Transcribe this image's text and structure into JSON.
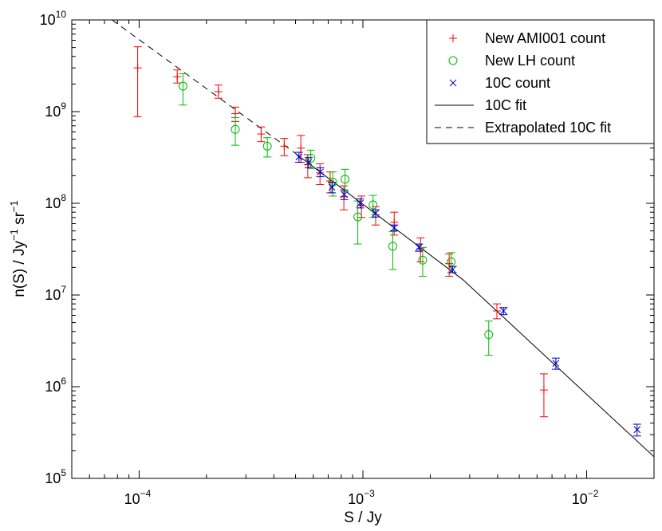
{
  "chart_data": {
    "type": "scatter",
    "title": "",
    "xscale": "log",
    "yscale": "log",
    "xlim": [
      5e-05,
      0.02
    ],
    "ylim": [
      100000,
      10000000000
    ],
    "xlabel": "S / Jy",
    "ylabel": {
      "base": "n(S) / Jy",
      "sup1": "−1",
      "mid": " sr",
      "sup2": "−1"
    },
    "xticks": [
      {
        "value": 0.0001,
        "base": "10",
        "exp": "−4"
      },
      {
        "value": 0.001,
        "base": "10",
        "exp": "−3"
      },
      {
        "value": 0.01,
        "base": "10",
        "exp": "−2"
      }
    ],
    "yticks": [
      {
        "value": 100000,
        "base": "10",
        "exp": "5"
      },
      {
        "value": 1000000,
        "base": "10",
        "exp": "6"
      },
      {
        "value": 10000000,
        "base": "10",
        "exp": "7"
      },
      {
        "value": 100000000,
        "base": "10",
        "exp": "8"
      },
      {
        "value": 1000000000,
        "base": "10",
        "exp": "9"
      },
      {
        "value": 10000000000,
        "base": "10",
        "exp": "10"
      }
    ],
    "legend_position": "top-right",
    "series": [
      {
        "name": "New AMI001 count",
        "marker": "plus",
        "color": "#ff0000",
        "points": [
          {
            "x": 9.85e-05,
            "y": 3000000000,
            "lo": 880000000,
            "hi": 5100000000
          },
          {
            "x": 0.000148,
            "y": 2400000000,
            "lo": 2050000000,
            "hi": 2850000000
          },
          {
            "x": 0.000226,
            "y": 1650000000,
            "lo": 1400000000,
            "hi": 1950000000
          },
          {
            "x": 0.000269,
            "y": 950000000,
            "lo": 780000000,
            "hi": 1120000000
          },
          {
            "x": 0.000351,
            "y": 570000000,
            "lo": 470000000,
            "hi": 680000000
          },
          {
            "x": 0.000445,
            "y": 420000000,
            "lo": 330000000,
            "hi": 510000000
          },
          {
            "x": 0.000528,
            "y": 400000000,
            "lo": 280000000,
            "hi": 550000000
          },
          {
            "x": 0.000567,
            "y": 265000000,
            "lo": 190000000,
            "hi": 340000000
          },
          {
            "x": 0.000643,
            "y": 215000000,
            "lo": 160000000,
            "hi": 270000000
          },
          {
            "x": 0.000714,
            "y": 175000000,
            "lo": 130000000,
            "hi": 220000000
          },
          {
            "x": 0.000822,
            "y": 118000000,
            "lo": 85000000,
            "hi": 155000000
          },
          {
            "x": 0.000985,
            "y": 95000000,
            "lo": 70000000,
            "hi": 120000000
          },
          {
            "x": 0.00114,
            "y": 75000000,
            "lo": 58000000,
            "hi": 92000000
          },
          {
            "x": 0.00138,
            "y": 62000000,
            "lo": 45000000,
            "hi": 80000000
          },
          {
            "x": 0.00181,
            "y": 32000000,
            "lo": 23000000,
            "hi": 42000000
          },
          {
            "x": 0.00243,
            "y": 22000000,
            "lo": 16000000,
            "hi": 28000000
          },
          {
            "x": 0.00397,
            "y": 6700000,
            "lo": 5500000,
            "hi": 8000000
          },
          {
            "x": 0.00644,
            "y": 920000,
            "lo": 470000,
            "hi": 1380000
          }
        ]
      },
      {
        "name": "New LH count",
        "marker": "circle",
        "color": "#00bb00",
        "points": [
          {
            "x": 0.000157,
            "y": 1900000000,
            "lo": 1180000000,
            "hi": 2600000000
          },
          {
            "x": 0.000269,
            "y": 640000000,
            "lo": 430000000,
            "hi": 860000000
          },
          {
            "x": 0.000374,
            "y": 420000000,
            "lo": 320000000,
            "hi": 520000000
          },
          {
            "x": 0.000585,
            "y": 310000000,
            "lo": 240000000,
            "hi": 380000000
          },
          {
            "x": 0.000733,
            "y": 170000000,
            "lo": 120000000,
            "hi": 220000000
          },
          {
            "x": 0.000832,
            "y": 183000000,
            "lo": 135000000,
            "hi": 235000000
          },
          {
            "x": 0.000949,
            "y": 71000000,
            "lo": 36000000,
            "hi": 106000000
          },
          {
            "x": 0.00111,
            "y": 96000000,
            "lo": 70000000,
            "hi": 122000000
          },
          {
            "x": 0.00136,
            "y": 34000000,
            "lo": 19000000,
            "hi": 49000000
          },
          {
            "x": 0.00185,
            "y": 24000000,
            "lo": 16000000,
            "hi": 33000000
          },
          {
            "x": 0.00248,
            "y": 23000000,
            "lo": 17500000,
            "hi": 29000000
          },
          {
            "x": 0.00365,
            "y": 3700000,
            "lo": 2200000,
            "hi": 5200000
          }
        ]
      },
      {
        "name": "10C count",
        "marker": "x",
        "color": "#0000cc",
        "points": [
          {
            "x": 0.000518,
            "y": 320000000,
            "lo": 280000000,
            "hi": 360000000
          },
          {
            "x": 0.000572,
            "y": 280000000,
            "lo": 245000000,
            "hi": 315000000
          },
          {
            "x": 0.000645,
            "y": 220000000,
            "lo": 195000000,
            "hi": 245000000
          },
          {
            "x": 0.000727,
            "y": 150000000,
            "lo": 130000000,
            "hi": 170000000
          },
          {
            "x": 0.000825,
            "y": 125000000,
            "lo": 110000000,
            "hi": 140000000
          },
          {
            "x": 0.000972,
            "y": 100000000,
            "lo": 89000000,
            "hi": 112000000
          },
          {
            "x": 0.00114,
            "y": 78000000,
            "lo": 71000000,
            "hi": 85000000
          },
          {
            "x": 0.00138,
            "y": 54000000,
            "lo": 50000000,
            "hi": 58000000
          },
          {
            "x": 0.00178,
            "y": 33000000,
            "lo": 30000000,
            "hi": 36000000
          },
          {
            "x": 0.00252,
            "y": 19000000,
            "lo": 17500000,
            "hi": 20500000
          },
          {
            "x": 0.00425,
            "y": 6700000,
            "lo": 6100000,
            "hi": 7300000
          },
          {
            "x": 0.00728,
            "y": 1800000,
            "lo": 1550000,
            "hi": 2050000
          },
          {
            "x": 0.0168,
            "y": 340000,
            "lo": 290000,
            "hi": 390000
          }
        ]
      }
    ],
    "lines": [
      {
        "name": "10C fit",
        "style": "solid",
        "color": "#000000",
        "points": [
          [
            0.0005,
            350000000
          ],
          [
            0.0028,
            14700000
          ],
          [
            0.02,
            172000
          ]
        ]
      },
      {
        "name": "Extrapolated 10C fit",
        "style": "dashed",
        "color": "#000000",
        "points": [
          [
            7.57e-05,
            10000000000
          ],
          [
            0.0005,
            350000000
          ]
        ]
      }
    ]
  }
}
